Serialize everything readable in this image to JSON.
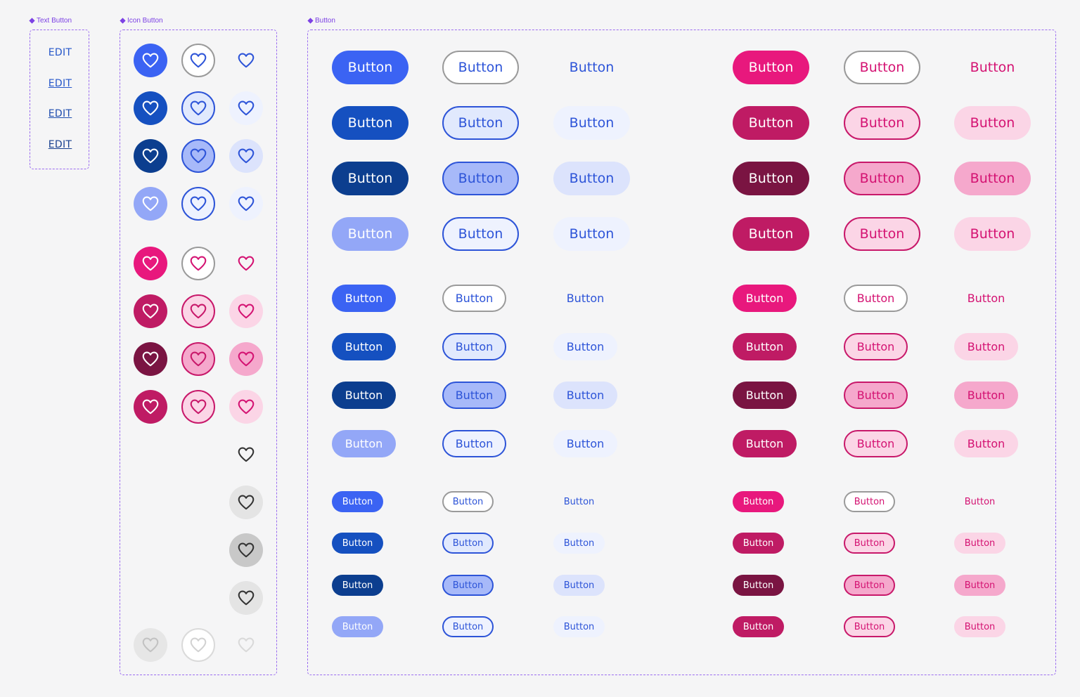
{
  "sections": {
    "text_button": {
      "label": "Text Button"
    },
    "icon_button": {
      "label": "Icon Button"
    },
    "button": {
      "label": "Button"
    }
  },
  "text_buttons": [
    {
      "label": "EDIT",
      "state": "default"
    },
    {
      "label": "EDIT",
      "state": "hover"
    },
    {
      "label": "EDIT",
      "state": "pressed"
    },
    {
      "label": "EDIT",
      "state": "focused"
    }
  ],
  "button_label": "Button",
  "icon": "heart-icon",
  "colors": {
    "component_purple": "#7b3fe4",
    "primary_default": "#3b63f3",
    "primary_hover": "#1550c0",
    "primary_pressed": "#0c3e8f",
    "primary_disabled": "#93a7f7",
    "pink_default": "#e8187d",
    "pink_hover": "#bf1b64",
    "pink_pressed": "#7a1442",
    "neutral_icon": "#333333"
  }
}
